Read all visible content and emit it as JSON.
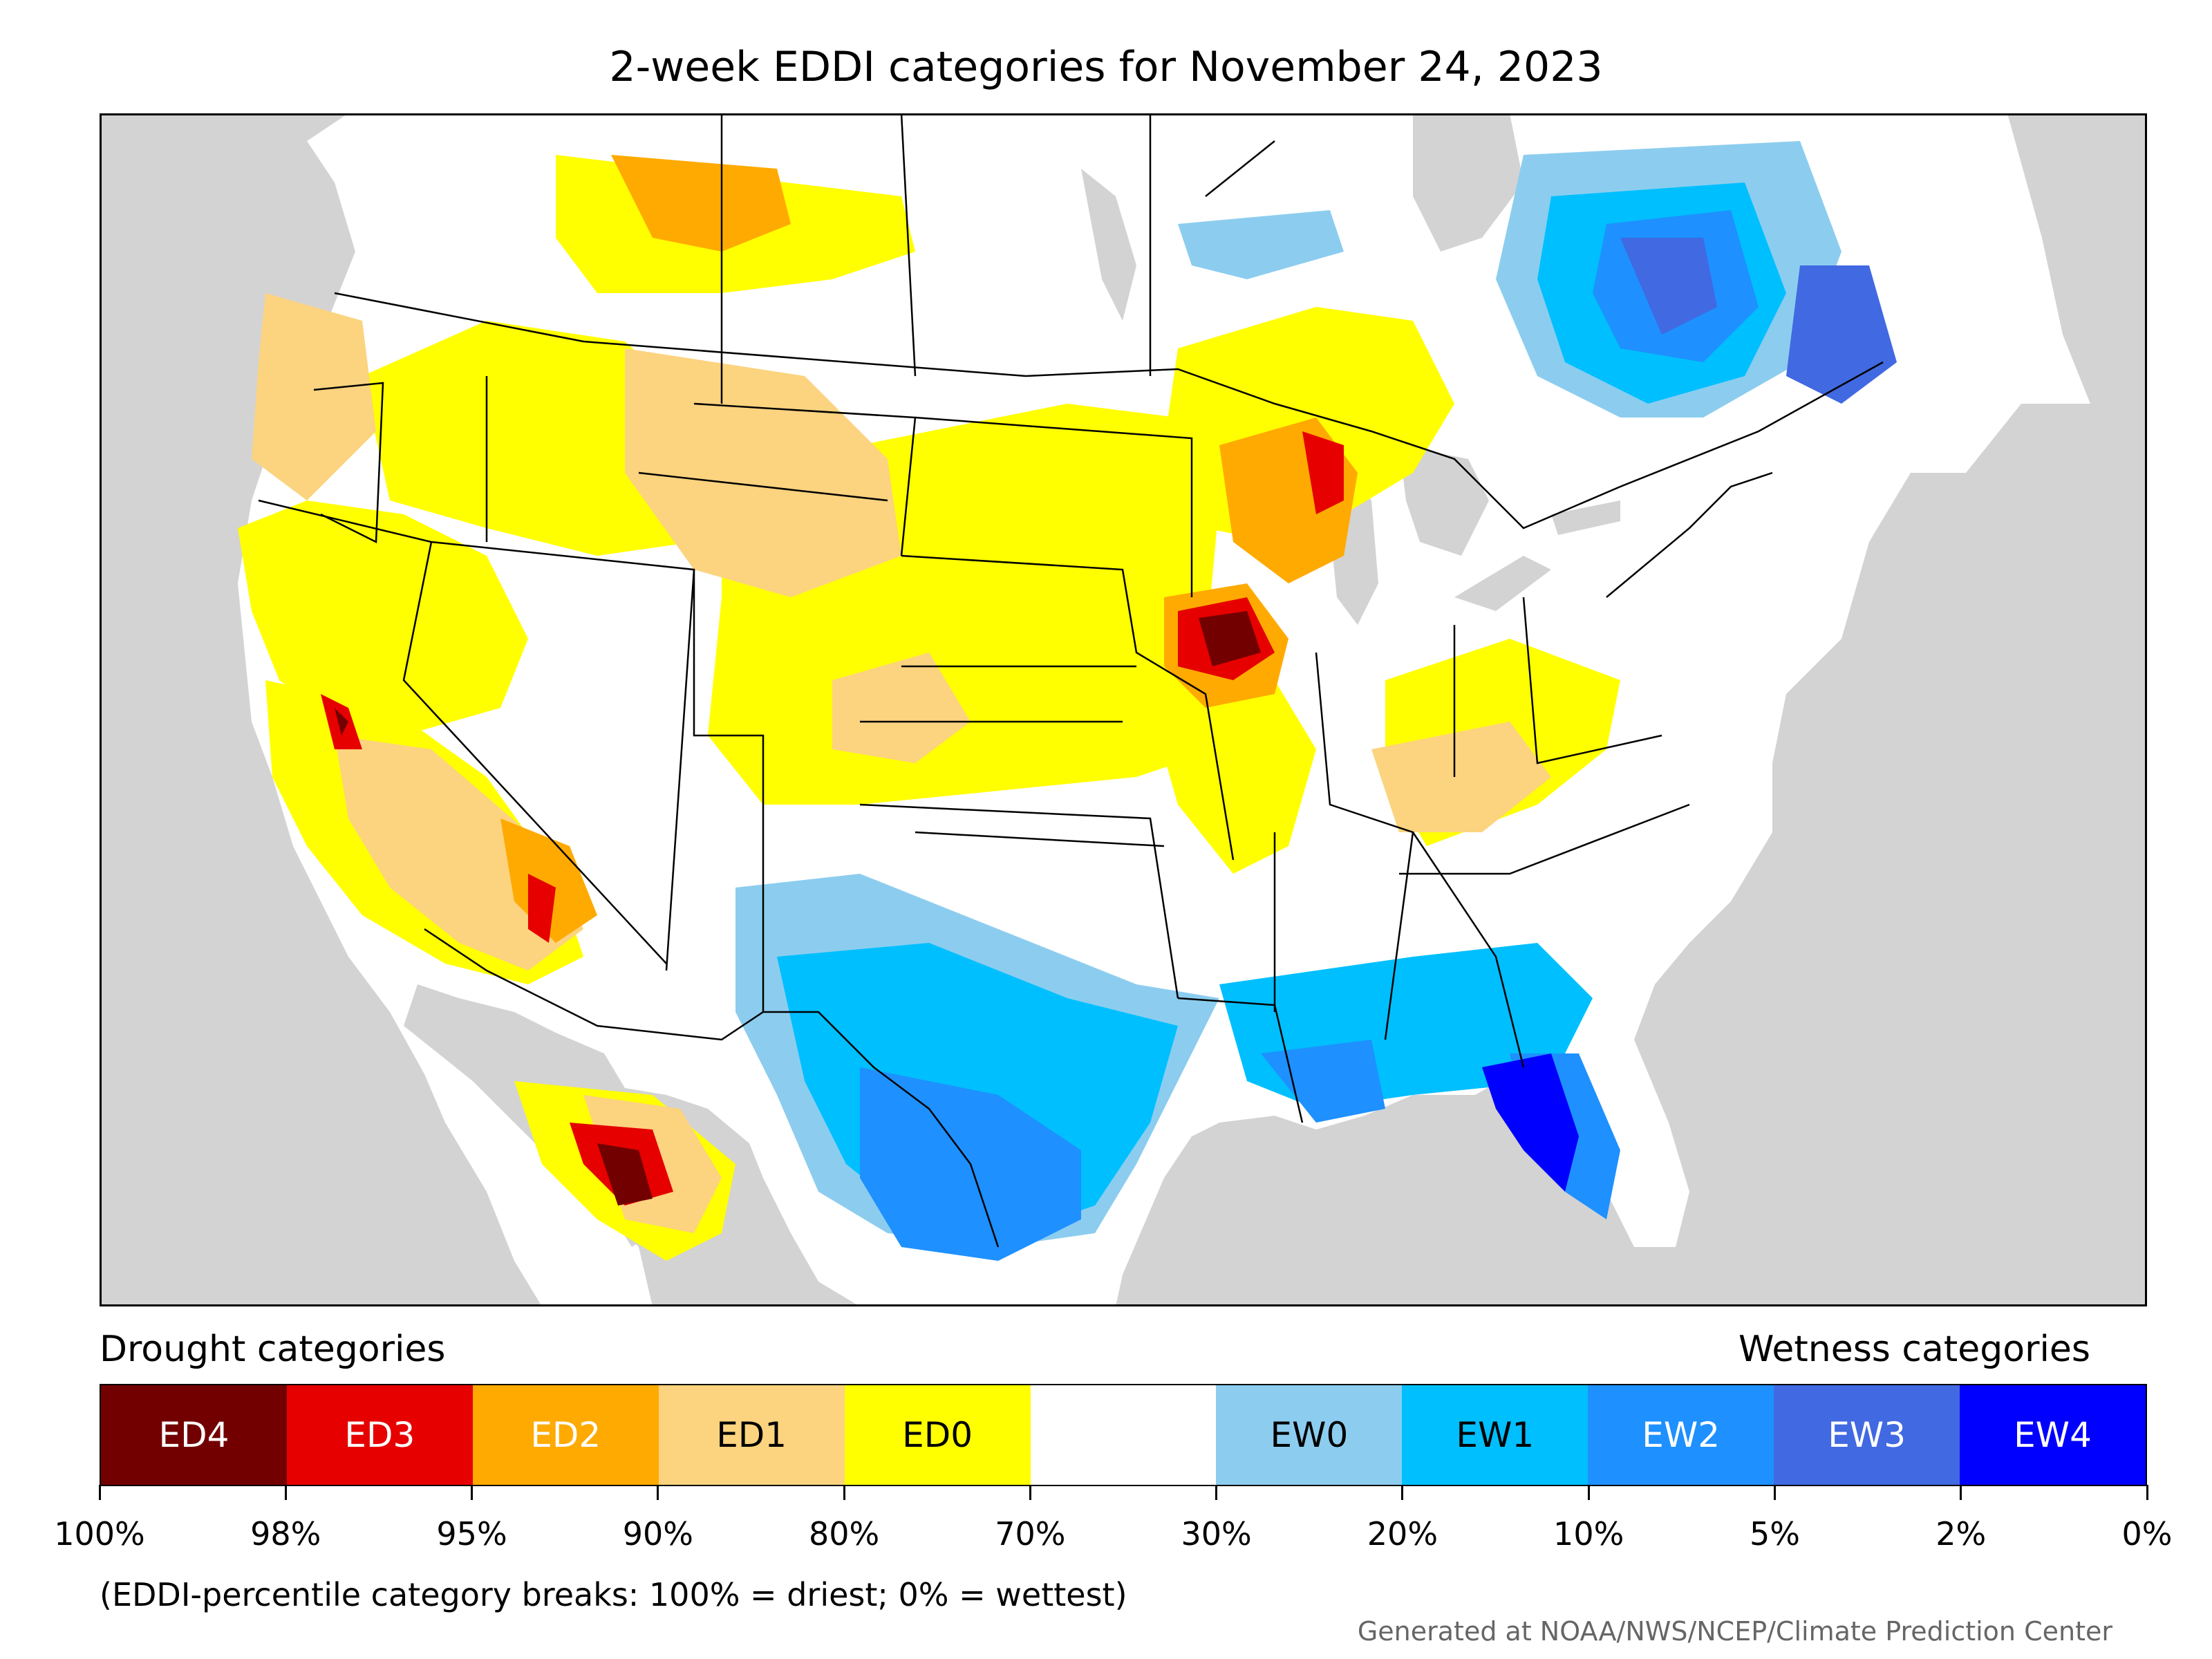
{
  "title": "2-week EDDI categories for November 24, 2023",
  "legend": {
    "drought_label": "Drought categories",
    "wetness_label": "Wetness categories",
    "categories": [
      {
        "label": "ED4",
        "color": "#730000",
        "text": "light"
      },
      {
        "label": "ED3",
        "color": "#e60000",
        "text": "light"
      },
      {
        "label": "ED2",
        "color": "#ffaa00",
        "text": "light"
      },
      {
        "label": "ED1",
        "color": "#fcd37f",
        "text": "dark"
      },
      {
        "label": "ED0",
        "color": "#ffff00",
        "text": "dark"
      },
      {
        "label": "",
        "color": "#ffffff",
        "text": "dark"
      },
      {
        "label": "EW0",
        "color": "#8ccdef",
        "text": "dark"
      },
      {
        "label": "EW1",
        "color": "#00bfff",
        "text": "dark"
      },
      {
        "label": "EW2",
        "color": "#1e90ff",
        "text": "light"
      },
      {
        "label": "EW3",
        "color": "#4169e1",
        "text": "light"
      },
      {
        "label": "EW4",
        "color": "#0000ff",
        "text": "light"
      }
    ],
    "breaks": [
      "100%",
      "98%",
      "95%",
      "90%",
      "80%",
      "70%",
      "30%",
      "20%",
      "10%",
      "5%",
      "2%",
      "0%"
    ],
    "note": "(EDDI-percentile category breaks: 100% = driest; 0% = wettest)"
  },
  "credit": "Generated at NOAA/NWS/NCEP/Climate Prediction Center",
  "colors": {
    "ocean": "#d3d3d3",
    "land": "#ffffff",
    "lakes": "#d3d3d3",
    "border": "#000000"
  }
}
